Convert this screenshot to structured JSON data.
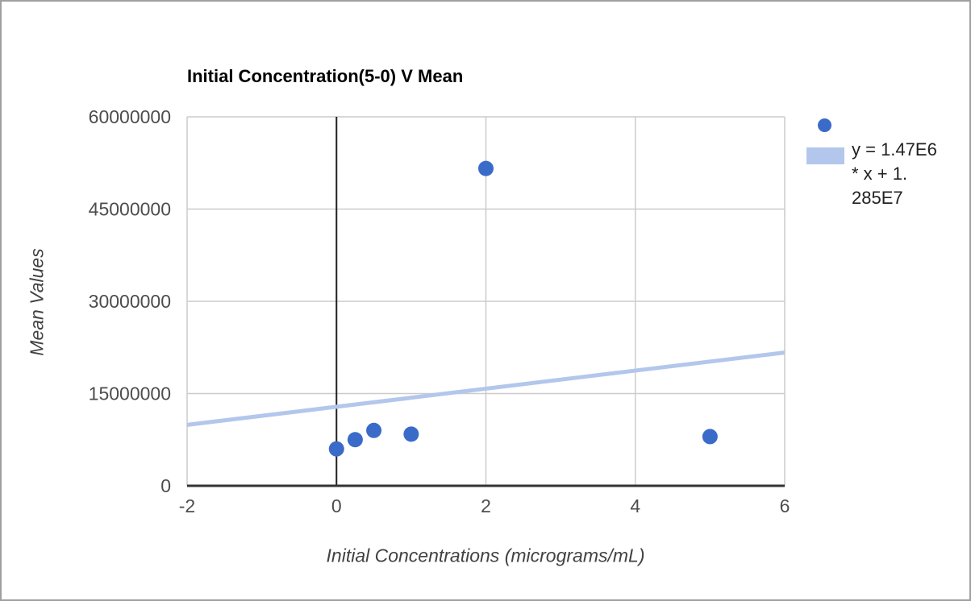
{
  "chart_data": {
    "type": "scatter",
    "title": "Initial Concentration(5-0) V Mean",
    "xlabel": "Initial Concentrations (micrograms/mL)",
    "ylabel": "Mean Values",
    "xlim": [
      -2,
      6
    ],
    "ylim": [
      0,
      60000000
    ],
    "grid": true,
    "legend_position": "right",
    "x_ticks": [
      {
        "value": -2,
        "label": "-2"
      },
      {
        "value": 0,
        "label": "0"
      },
      {
        "value": 2,
        "label": "2"
      },
      {
        "value": 4,
        "label": "4"
      },
      {
        "value": 6,
        "label": "6"
      }
    ],
    "y_ticks": [
      {
        "value": 0,
        "label": "0"
      },
      {
        "value": 15000000,
        "label": "15000000"
      },
      {
        "value": 30000000,
        "label": "30000000"
      },
      {
        "value": 45000000,
        "label": "45000000"
      },
      {
        "value": 60000000,
        "label": "60000000"
      }
    ],
    "points": [
      {
        "x": 0,
        "y": 6000000
      },
      {
        "x": 0.25,
        "y": 7500000
      },
      {
        "x": 0.5,
        "y": 9000000
      },
      {
        "x": 1,
        "y": 8400000
      },
      {
        "x": 2,
        "y": 51600000
      },
      {
        "x": 5,
        "y": 8000000
      }
    ],
    "trendline": {
      "slope": 1470000,
      "intercept": 12850000,
      "label": "y = 1.47E6 * x + 1.285E7"
    },
    "legend": {
      "trendline_label_lines": [
        "y = 1.47E6",
        "* x + 1.",
        "285E7"
      ]
    },
    "colors": {
      "series": "#3a6bc9",
      "trendline": "#b3c7ec",
      "gridline": "#cccccc",
      "axis_line": "#333333",
      "zero_line": "#212121",
      "tick_text": "#4d4d4d",
      "axis_title_text": "#424242",
      "title_text": "#000000",
      "frame_border": "#a0a0a0"
    }
  }
}
